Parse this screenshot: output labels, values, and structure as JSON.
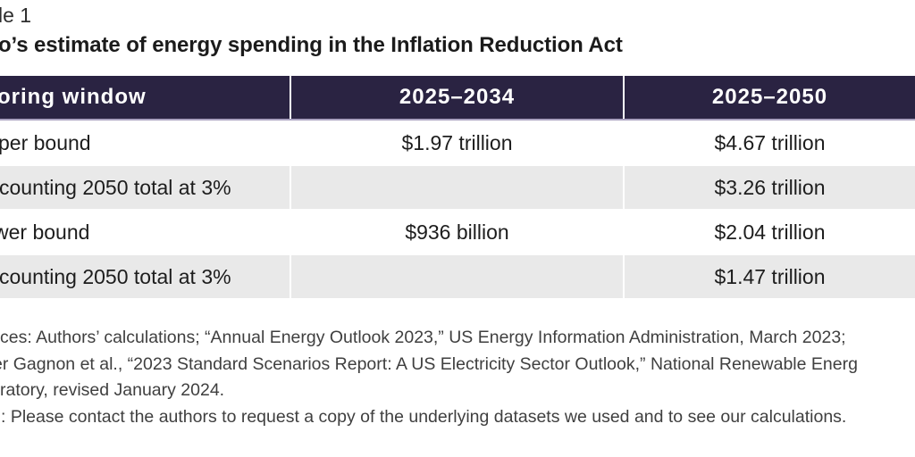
{
  "page": {
    "table_number": "le 1",
    "title": "o’s estimate of energy spending in the Inflation Reduction Act"
  },
  "table": {
    "columns": [
      "oring window",
      "2025–2034",
      "2025–2050"
    ],
    "rows": [
      {
        "label": "per bound",
        "v2034": "$1.97 trillion",
        "v2050": "$4.67 trillion"
      },
      {
        "label": "counting 2050 total at 3%",
        "v2034": "",
        "v2050": "$3.26 trillion"
      },
      {
        "label": "wer bound",
        "v2034": "$936 billion",
        "v2050": "$2.04 trillion"
      },
      {
        "label": "counting 2050 total at 3%",
        "v2034": "",
        "v2050": "$1.47 trillion"
      }
    ]
  },
  "notes": {
    "lines": [
      "ces: Authors’ calculations; “Annual Energy Outlook 2023,” US Energy Information Administration, March 2023;",
      "er Gagnon et al., “2023 Standard Scenarios Report: A US Electricity Sector Outlook,” National Renewable Energ",
      "ratory, revised January 2024.",
      ": Please contact the authors to request a copy of the underlying datasets we used and to see our calculations."
    ]
  },
  "colors": {
    "header_bg": "#2a2342",
    "header_text": "#ffffff",
    "shaded_row_bg": "#e9e9e9",
    "header_rule": "#a9a1bf",
    "body_text": "#1d1d1d",
    "notes_text": "#3f3f3f"
  }
}
